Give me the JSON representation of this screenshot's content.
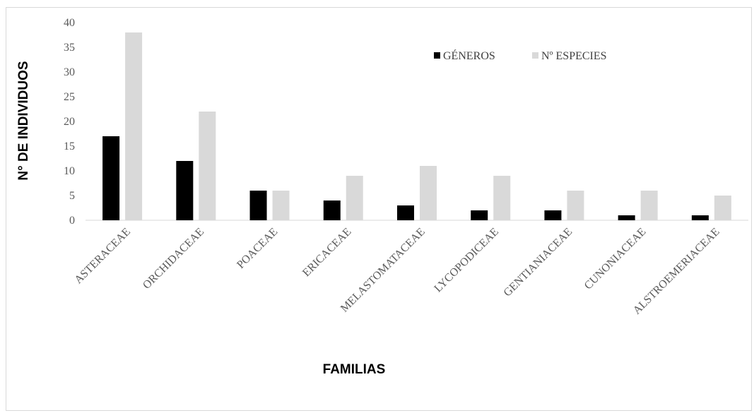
{
  "chart_data": {
    "type": "bar",
    "title": "",
    "xlabel": "FAMILIAS",
    "ylabel": "N° DE INDIVIDUOS",
    "ylim": [
      0,
      40
    ],
    "yticks": [
      0,
      5,
      10,
      15,
      20,
      25,
      30,
      35,
      40
    ],
    "grid": false,
    "legend_position": "top-right",
    "categories": [
      "ASTERACEAE",
      "ORCHIDACEAE",
      "POACEAE",
      "ERICACEAE",
      "MELASTOMATACEAE",
      "LYCOPODICEAE",
      "GENTIANIACEAE",
      "CUNONIACEAE",
      "ALSTROEMERIACEAE"
    ],
    "series": [
      {
        "name": "GÉNEROS",
        "color": "#000000",
        "values": [
          17,
          12,
          6,
          4,
          3,
          2,
          2,
          1,
          1
        ]
      },
      {
        "name": "Nº ESPECIES",
        "color": "#d9d9d9",
        "values": [
          38,
          22,
          6,
          9,
          11,
          9,
          6,
          6,
          5
        ]
      }
    ]
  }
}
